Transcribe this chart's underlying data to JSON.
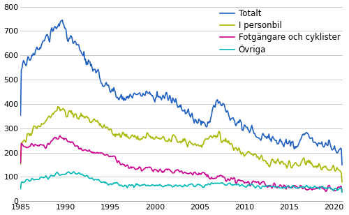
{
  "title": "",
  "xlabel": "",
  "ylabel": "",
  "xlim": [
    1985.0,
    2021.0
  ],
  "ylim": [
    0,
    800
  ],
  "yticks": [
    0,
    100,
    200,
    300,
    400,
    500,
    600,
    700,
    800
  ],
  "xticks": [
    1985,
    1990,
    1995,
    2000,
    2005,
    2010,
    2015,
    2020
  ],
  "legend_entries": [
    "Totalt",
    "I personbil",
    "Fotgängare och cyklister",
    "Övriga"
  ],
  "colors": {
    "totalt": "#2060c0",
    "personbil": "#a8b800",
    "fotgangare": "#cc0090",
    "ovriga": "#00b8b8"
  },
  "linewidth": 1.2,
  "background_color": "#ffffff",
  "grid_color": "#cccccc",
  "tick_fontsize": 8,
  "legend_fontsize": 8.5
}
